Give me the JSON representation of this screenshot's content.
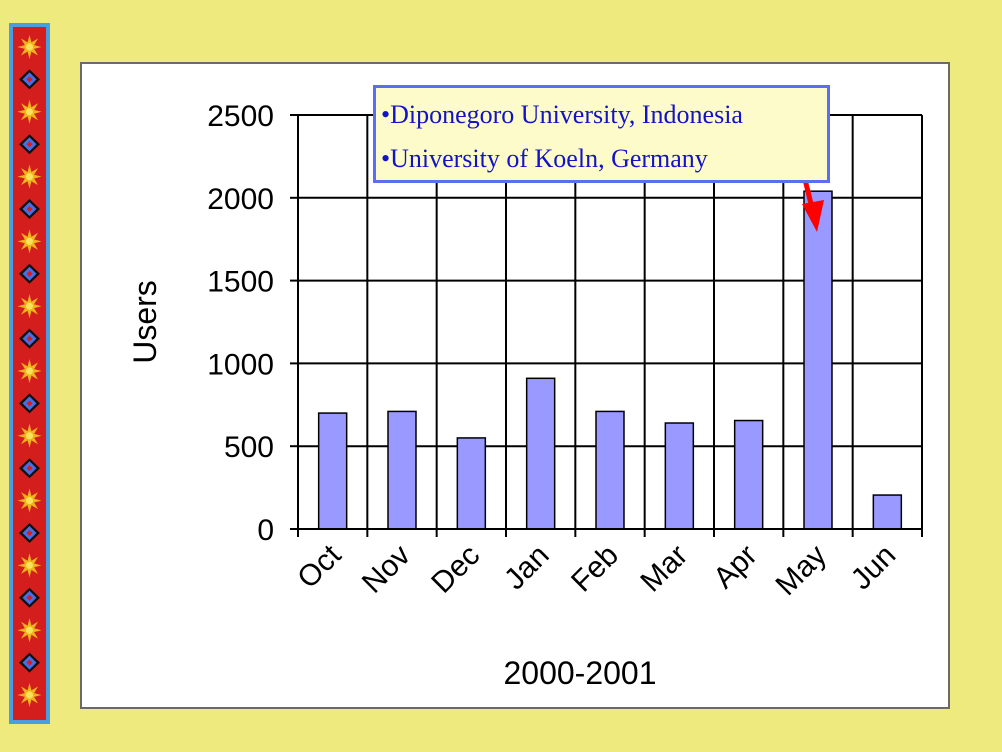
{
  "chart_data": {
    "type": "bar",
    "categories": [
      "Oct",
      "Nov",
      "Dec",
      "Jan",
      "Feb",
      "Mar",
      "Apr",
      "May",
      "Jun"
    ],
    "values": [
      700,
      710,
      550,
      910,
      710,
      640,
      655,
      2040,
      205
    ],
    "xlabel": "2000-2001",
    "ylabel": "Users",
    "ylim": [
      0,
      2500
    ],
    "yticks": [
      0,
      500,
      1000,
      1500,
      2000,
      2500
    ],
    "grid": true,
    "bar_color": "#9999ff",
    "annotation": {
      "lines": [
        "•Diponegoro University, Indonesia",
        "•University  of Koeln, Germany"
      ],
      "text_color": "#1212c8",
      "arrow_color": "#ff0000",
      "points_to": "May"
    }
  },
  "colors": {
    "slide_background": "#efea7e",
    "strip_outer": "#4a9de0",
    "strip_inner": "#d41e1e"
  },
  "decoration": {
    "pattern": [
      "star-icon",
      "diamond-icon"
    ]
  }
}
